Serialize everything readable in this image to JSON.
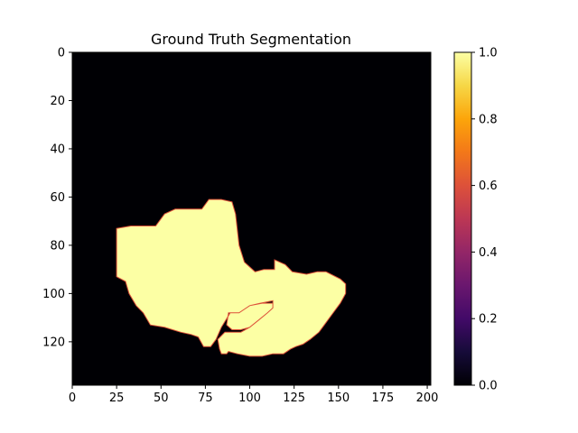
{
  "chart_data": {
    "type": "heatmap",
    "title": "Ground Truth Segmentation",
    "xlabel": "",
    "ylabel": "",
    "image_shape": [
      138,
      202
    ],
    "xlim": [
      0,
      202
    ],
    "ylim": [
      138,
      0
    ],
    "xticks": [
      0,
      25,
      50,
      75,
      100,
      125,
      150,
      175,
      200
    ],
    "yticks": [
      0,
      20,
      40,
      60,
      80,
      100,
      120
    ],
    "colormap": "inferno",
    "value_range": [
      0,
      1
    ],
    "background_value": 0,
    "foreground_value": 1,
    "colorbar": {
      "ticks": [
        "0.0",
        "0.2",
        "0.4",
        "0.6",
        "0.8",
        "1.0"
      ],
      "tick_values": [
        0,
        0.2,
        0.4,
        0.6,
        0.8,
        1.0
      ]
    },
    "mask_region_outline": [
      [
        25,
        73
      ],
      [
        33,
        72
      ],
      [
        47,
        72
      ],
      [
        52,
        67
      ],
      [
        58,
        65
      ],
      [
        73,
        65
      ],
      [
        77,
        61
      ],
      [
        84,
        61
      ],
      [
        90,
        62
      ],
      [
        92,
        67
      ],
      [
        94,
        80
      ],
      [
        97,
        87
      ],
      [
        103,
        91
      ],
      [
        108,
        90
      ],
      [
        114,
        90
      ],
      [
        114,
        86
      ],
      [
        120,
        88
      ],
      [
        124,
        91
      ],
      [
        132,
        92
      ],
      [
        138,
        91
      ],
      [
        143,
        91
      ],
      [
        151,
        94
      ],
      [
        154,
        96
      ],
      [
        154,
        100
      ],
      [
        151,
        104
      ],
      [
        146,
        109
      ],
      [
        142,
        113
      ],
      [
        139,
        116
      ],
      [
        134,
        119
      ],
      [
        130,
        121
      ],
      [
        126,
        122
      ],
      [
        123,
        123
      ],
      [
        119,
        125
      ],
      [
        113,
        125
      ],
      [
        107,
        126
      ],
      [
        100,
        126
      ],
      [
        93,
        125
      ],
      [
        88,
        124
      ],
      [
        87,
        125
      ],
      [
        84,
        125
      ],
      [
        83,
        123
      ],
      [
        82,
        119
      ],
      [
        86,
        116
      ],
      [
        95,
        116
      ],
      [
        100,
        114
      ],
      [
        105,
        111
      ],
      [
        110,
        108
      ],
      [
        113,
        106
      ],
      [
        113,
        104
      ],
      [
        107,
        104
      ],
      [
        100,
        105
      ],
      [
        94,
        108
      ],
      [
        89,
        108
      ],
      [
        84,
        114
      ],
      [
        81,
        119
      ],
      [
        78,
        122
      ],
      [
        74,
        122
      ],
      [
        71,
        118
      ],
      [
        67,
        117
      ],
      [
        61,
        116
      ],
      [
        52,
        114
      ],
      [
        44,
        113
      ],
      [
        40,
        108
      ],
      [
        36,
        105
      ],
      [
        32,
        100
      ],
      [
        30,
        95
      ],
      [
        25,
        93
      ]
    ],
    "mask_hole_outline": [
      [
        88,
        108
      ],
      [
        94,
        108
      ],
      [
        100,
        105
      ],
      [
        106,
        104
      ],
      [
        113,
        103
      ],
      [
        113,
        106
      ],
      [
        110,
        108
      ],
      [
        105,
        111
      ],
      [
        100,
        114
      ],
      [
        95,
        115
      ],
      [
        90,
        115
      ],
      [
        87,
        113
      ]
    ]
  }
}
